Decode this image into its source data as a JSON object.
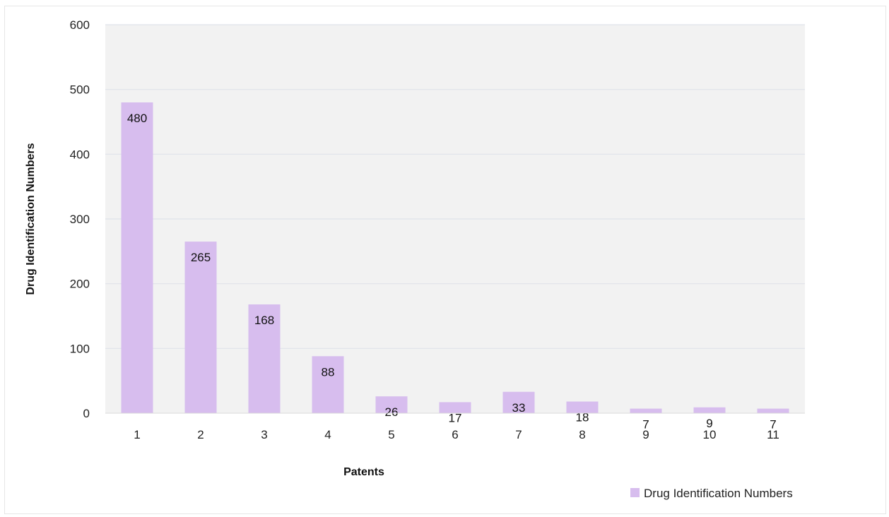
{
  "chart_data": {
    "type": "bar",
    "title": "",
    "xlabel": "Patents",
    "ylabel": "Drug Identification Numbers",
    "categories": [
      "1",
      "2",
      "3",
      "4",
      "5",
      "6",
      "7",
      "8",
      "9",
      "10",
      "11"
    ],
    "series": [
      {
        "name": "Drug Identification Numbers",
        "values": [
          480,
          265,
          168,
          88,
          26,
          17,
          33,
          18,
          7,
          9,
          7
        ],
        "color": "#d7bdee"
      }
    ],
    "ylim": [
      0,
      600
    ],
    "yticks": [
      0,
      100,
      200,
      300,
      400,
      500,
      600
    ],
    "grid": true,
    "legend": "bottom-right",
    "plot_background": "#f2f2f2"
  }
}
